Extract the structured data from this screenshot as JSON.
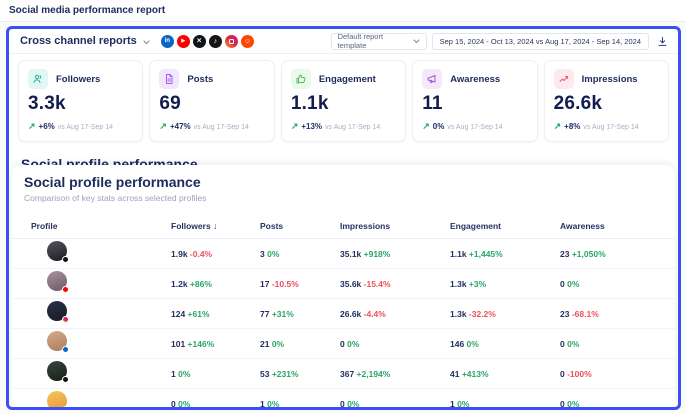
{
  "page": {
    "title": "Social media performance report"
  },
  "report_header": {
    "title": "Cross channel reports",
    "channels": [
      {
        "name": "linkedin",
        "color": "#0a66c2",
        "glyph": "in"
      },
      {
        "name": "youtube",
        "color": "#fe0000",
        "glyph": "▶"
      },
      {
        "name": "x",
        "color": "#0f1419",
        "glyph": "×"
      },
      {
        "name": "tiktok",
        "color": "#161616",
        "glyph": "♪"
      },
      {
        "name": "instagram",
        "color": "gradient",
        "glyph": ""
      },
      {
        "name": "reddit",
        "color": "#ff4500",
        "glyph": "☺"
      }
    ],
    "template_select_value": "Default report template",
    "date_range": "Sep 15, 2024 - Oct 13, 2024 vs Aug 17, 2024 - Sep 14, 2024"
  },
  "kpis": [
    {
      "label": "Followers",
      "value": "3.3k",
      "delta": "+6%",
      "compare": "vs Aug 17-Sep 14",
      "icon": "followers",
      "color": "#1ab3a0",
      "bg": "#e3f6f3"
    },
    {
      "label": "Posts",
      "value": "69",
      "delta": "+47%",
      "compare": "vs Aug 17-Sep 14",
      "icon": "posts",
      "color": "#a35cf0",
      "bg": "#f1e7fd"
    },
    {
      "label": "Engagement",
      "value": "1.1k",
      "delta": "+13%",
      "compare": "vs Aug 17-Sep 14",
      "icon": "engagement",
      "color": "#55c05e",
      "bg": "#eaf9ec"
    },
    {
      "label": "Awareness",
      "value": "11",
      "delta": "0%",
      "compare": "vs Aug 17-Sep 14",
      "icon": "awareness",
      "color": "#b24ed6",
      "bg": "#f4e8fb"
    },
    {
      "label": "Impressions",
      "value": "26.6k",
      "delta": "+8%",
      "compare": "vs Aug 17-Sep 14",
      "icon": "impressions",
      "color": "#ee5a74",
      "bg": "#fdeaef"
    }
  ],
  "section": {
    "clipped_title": "Social profile performance",
    "title": "Social profile performance",
    "subtitle": "Comparison of key stats across selected profiles"
  },
  "table": {
    "columns": [
      "Profile",
      "Followers",
      "Posts",
      "Impressions",
      "Engagement",
      "Awareness"
    ],
    "sorted_column": "Followers",
    "sort_direction": "desc",
    "rows": [
      {
        "profile": {
          "network": "tiktok",
          "avatar": [
            "#55555e",
            "#1c1c22"
          ],
          "badge": "#0f0f14"
        },
        "cells": [
          {
            "v": "1.9k",
            "d": "-0.4%"
          },
          {
            "v": "3",
            "d": "0%"
          },
          {
            "v": "35.1k",
            "d": "+918%"
          },
          {
            "v": "1.1k",
            "d": "+1,445%"
          },
          {
            "v": "23",
            "d": "+1,050%"
          }
        ]
      },
      {
        "profile": {
          "network": "youtube",
          "avatar": [
            "#a4939c",
            "#6e5a66"
          ],
          "badge": "#fe0000"
        },
        "cells": [
          {
            "v": "1.2k",
            "d": "+86%"
          },
          {
            "v": "17",
            "d": "-10.5%"
          },
          {
            "v": "35.6k",
            "d": "-15.4%"
          },
          {
            "v": "1.3k",
            "d": "+3%"
          },
          {
            "v": "0",
            "d": "0%"
          }
        ]
      },
      {
        "profile": {
          "network": "instagram",
          "avatar": [
            "#2b3046",
            "#171b2b"
          ],
          "badge": "instagram"
        },
        "cells": [
          {
            "v": "124",
            "d": "+61%"
          },
          {
            "v": "77",
            "d": "+31%"
          },
          {
            "v": "26.6k",
            "d": "-4.4%"
          },
          {
            "v": "1.3k",
            "d": "-32.2%"
          },
          {
            "v": "23",
            "d": "-68.1%"
          }
        ]
      },
      {
        "profile": {
          "network": "linkedin",
          "avatar": [
            "#d8ab8c",
            "#a97c5c"
          ],
          "badge": "#0a66c2"
        },
        "cells": [
          {
            "v": "101",
            "d": "+146%"
          },
          {
            "v": "21",
            "d": "0%"
          },
          {
            "v": "0",
            "d": "0%"
          },
          {
            "v": "146",
            "d": "0%"
          },
          {
            "v": "0",
            "d": "0%"
          }
        ]
      },
      {
        "profile": {
          "network": "x",
          "avatar": [
            "#39443c",
            "#181f1a"
          ],
          "badge": "#101014"
        },
        "cells": [
          {
            "v": "1",
            "d": "0%"
          },
          {
            "v": "53",
            "d": "+231%"
          },
          {
            "v": "367",
            "d": "+2,194%"
          },
          {
            "v": "41",
            "d": "+413%"
          },
          {
            "v": "0",
            "d": "-100%"
          }
        ]
      },
      {
        "profile": {
          "network": "reddit",
          "avatar": [
            "#f6c75a",
            "#e8933c"
          ],
          "badge": "#ff4500"
        },
        "cells": [
          {
            "v": "0",
            "d": "0%"
          },
          {
            "v": "1",
            "d": "0%"
          },
          {
            "v": "0",
            "d": "0%"
          },
          {
            "v": "1",
            "d": "0%"
          },
          {
            "v": "0",
            "d": "0%"
          }
        ]
      }
    ]
  },
  "colors": {
    "accent_frame": "#3b50f2",
    "positive": "#2aa567",
    "negative": "#e9505c",
    "heading": "#1c2a5e"
  }
}
